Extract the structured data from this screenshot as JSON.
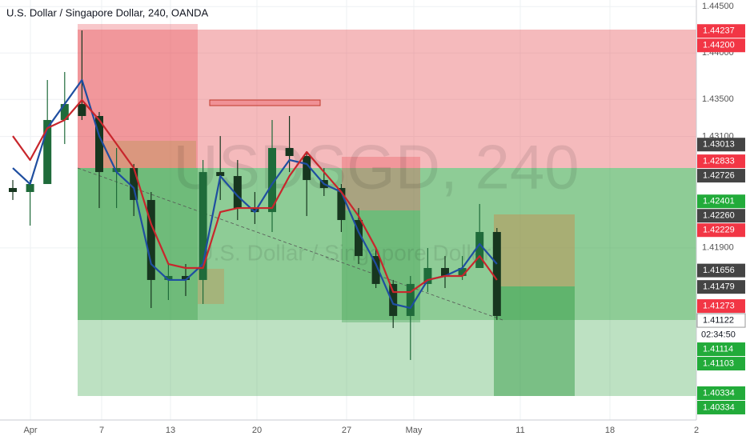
{
  "chart_data": {
    "type": "candlestick",
    "title": "U.S. Dollar / Singapore Dollar, 240, OANDA",
    "watermark": "USDSGD, 240",
    "watermark_subtitle": "U.S. Dollar / Singapore Dollar",
    "ylim": [
      1.40045,
      1.44571
    ],
    "yticks": [
      {
        "value": 1.445,
        "label": "1.44500"
      },
      {
        "value": 1.44,
        "label": "1.44000"
      },
      {
        "value": 1.435,
        "label": "1.43500"
      },
      {
        "value": 1.431,
        "label": "1.43100"
      },
      {
        "value": 1.419,
        "label": "1.41900"
      }
    ],
    "xticks": [
      "Apr",
      "7",
      "13",
      "20",
      "27",
      "May",
      "11",
      "18",
      "2"
    ],
    "grid": true,
    "up_color": "#1f6b3a",
    "down_color": "#17361f",
    "open": [
      1.42545,
      1.42502,
      1.42588,
      1.43278,
      1.4345,
      1.43321,
      1.42717,
      1.4276,
      1.42416,
      1.41554,
      1.41597,
      1.41554,
      1.42717,
      1.42674,
      1.42329,
      1.42286,
      1.42976,
      1.4289,
      1.42631,
      1.42545,
      1.422,
      1.41812,
      1.41511,
      1.41166,
      1.41511,
      1.41683,
      1.41597,
      1.41683,
      1.42071
    ],
    "high": [
      1.42631,
      1.42631,
      1.43709,
      1.43795,
      1.44243,
      1.43364,
      1.42976,
      1.42804,
      1.42502,
      1.41726,
      1.41726,
      1.42847,
      1.43105,
      1.42847,
      1.42502,
      1.43278,
      1.43321,
      1.42933,
      1.4276,
      1.42588,
      1.42329,
      1.41898,
      1.41554,
      1.41597,
      1.41898,
      1.41812,
      1.41812,
      1.42373,
      1.42114
    ],
    "low": [
      1.42416,
      1.4214,
      1.42588,
      1.43019,
      1.43278,
      1.42329,
      1.42329,
      1.42243,
      1.41252,
      1.41338,
      1.41381,
      1.41295,
      1.42416,
      1.422,
      1.42157,
      1.42071,
      1.42717,
      1.42243,
      1.42459,
      1.42071,
      1.41726,
      1.41467,
      1.41036,
      1.40692,
      1.41424,
      1.41467,
      1.41554,
      1.41683,
      1.41123
    ],
    "close": [
      1.42502,
      1.42588,
      1.43278,
      1.4345,
      1.43321,
      1.42717,
      1.4276,
      1.42416,
      1.41554,
      1.41597,
      1.41554,
      1.42717,
      1.42674,
      1.42329,
      1.42286,
      1.42976,
      1.4289,
      1.42631,
      1.42545,
      1.422,
      1.41812,
      1.41511,
      1.41166,
      1.41511,
      1.41683,
      1.41597,
      1.41683,
      1.42071,
      1.41166
    ],
    "series": [
      {
        "color": "#1f4ea0",
        "values": [
          1.4276,
          1.42588,
          1.43191,
          1.4345,
          1.43709,
          1.43105,
          1.42717,
          1.42545,
          1.41726,
          1.41554,
          1.41554,
          1.41726,
          1.42674,
          1.42459,
          1.42286,
          1.42588,
          1.42847,
          1.42804,
          1.42588,
          1.42502,
          1.42071,
          1.41726,
          1.41295,
          1.41252,
          1.41554,
          1.41597,
          1.41683,
          1.41942,
          1.41726
        ]
      },
      {
        "color": "#c8262c",
        "values": [
          1.43105,
          1.42847,
          1.43191,
          1.43278,
          1.43493,
          1.43278,
          1.43019,
          1.4276,
          1.42157,
          1.41726,
          1.41683,
          1.41683,
          1.42286,
          1.42329,
          1.42329,
          1.42329,
          1.42674,
          1.42933,
          1.42717,
          1.42502,
          1.42243,
          1.41898,
          1.41424,
          1.41424,
          1.41554,
          1.41597,
          1.41597,
          1.41812,
          1.41554
        ]
      }
    ],
    "price_tags": [
      {
        "value": 1.44237,
        "label": "1.44237",
        "color": "#f23645"
      },
      {
        "value": 1.442,
        "label": "1.44200",
        "color": "#f23645"
      },
      {
        "value": 1.43013,
        "label": "1.43013",
        "color": "#444444"
      },
      {
        "value": 1.42833,
        "label": "1.42833",
        "color": "#f23645"
      },
      {
        "value": 1.42726,
        "label": "1.42726",
        "color": "#444444"
      },
      {
        "value": 1.42401,
        "label": "1.42401",
        "color": "#22ab3a"
      },
      {
        "value": 1.4226,
        "label": "1.42260",
        "color": "#444444"
      },
      {
        "value": 1.42229,
        "label": "1.42229",
        "color": "#f23645"
      },
      {
        "value": 1.41656,
        "label": "1.41656",
        "color": "#444444"
      },
      {
        "value": 1.41479,
        "label": "1.41479",
        "color": "#444444"
      },
      {
        "value": 1.41273,
        "label": "1.41273",
        "color": "#f23645"
      },
      {
        "value": 1.41122,
        "label": "1.41122",
        "color": "#ffffff"
      },
      {
        "value": 1.41114,
        "label": "1.41114",
        "color": "#22ab3a"
      },
      {
        "value": 1.41103,
        "label": "1.41103",
        "color": "#22ab3a"
      },
      {
        "value": 1.40334,
        "label": "1.40334",
        "color": "#22ab3a"
      },
      {
        "value": 1.40334,
        "label": "1.40334",
        "color": "#22ab3a"
      }
    ],
    "countdown": "02:34:50"
  }
}
